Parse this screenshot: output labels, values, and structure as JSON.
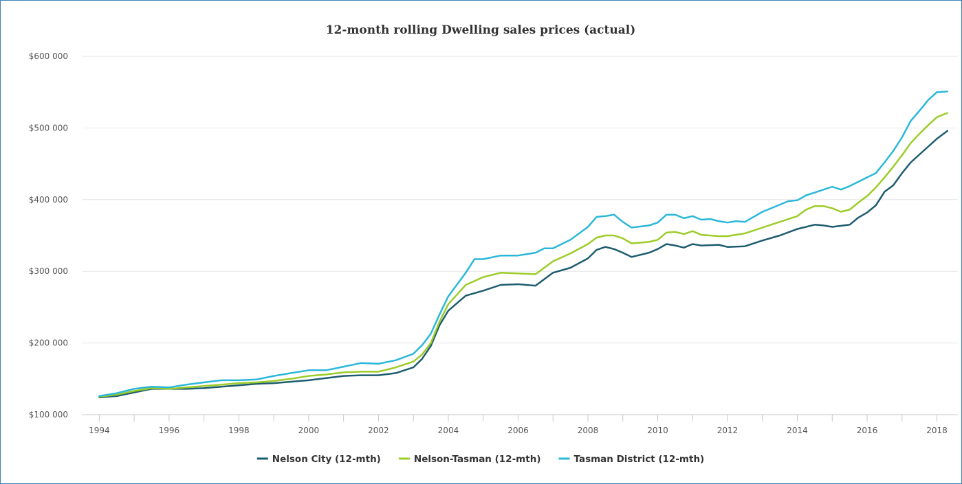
{
  "chart_data": {
    "type": "line",
    "title": "12-month rolling Dwelling sales prices (actual)",
    "xlabel": "",
    "ylabel": "",
    "xlim": [
      1993.5,
      2018.6
    ],
    "ylim": [
      100000,
      600000
    ],
    "y_ticks": [
      {
        "value": 100000,
        "label": "$100 000"
      },
      {
        "value": 200000,
        "label": "$200 000"
      },
      {
        "value": 300000,
        "label": "$300 000"
      },
      {
        "value": 400000,
        "label": "$400 000"
      },
      {
        "value": 500000,
        "label": "$500 000"
      },
      {
        "value": 600000,
        "label": "$600 000"
      }
    ],
    "x_ticks": [
      {
        "value": 1994,
        "label": "1994"
      },
      {
        "value": 1996,
        "label": "1996"
      },
      {
        "value": 1998,
        "label": "1998"
      },
      {
        "value": 2000,
        "label": "2000"
      },
      {
        "value": 2002,
        "label": "2002"
      },
      {
        "value": 2004,
        "label": "2004"
      },
      {
        "value": 2006,
        "label": "2006"
      },
      {
        "value": 2008,
        "label": "2008"
      },
      {
        "value": 2010,
        "label": "2010"
      },
      {
        "value": 2012,
        "label": "2012"
      },
      {
        "value": 2014,
        "label": "2014"
      },
      {
        "value": 2016,
        "label": "2016"
      },
      {
        "value": 2018,
        "label": "2018"
      }
    ],
    "grid": true,
    "legend_position": "bottom-center",
    "series": [
      {
        "name": "Nelson City (12-mth)",
        "color": "#1d5c6e",
        "points": [
          [
            1994.0,
            124000
          ],
          [
            1994.5,
            126000
          ],
          [
            1995.0,
            131000
          ],
          [
            1995.5,
            136000
          ],
          [
            1996.0,
            136000
          ],
          [
            1996.5,
            136000
          ],
          [
            1997.0,
            137000
          ],
          [
            1997.5,
            139000
          ],
          [
            1998.0,
            141000
          ],
          [
            1998.5,
            143000
          ],
          [
            1999.0,
            144000
          ],
          [
            1999.5,
            146000
          ],
          [
            2000.0,
            148000
          ],
          [
            2000.5,
            151000
          ],
          [
            2001.0,
            154000
          ],
          [
            2001.5,
            155000
          ],
          [
            2002.0,
            155000
          ],
          [
            2002.5,
            158000
          ],
          [
            2003.0,
            166000
          ],
          [
            2003.25,
            178000
          ],
          [
            2003.5,
            196000
          ],
          [
            2003.75,
            225000
          ],
          [
            2004.0,
            245000
          ],
          [
            2004.5,
            266000
          ],
          [
            2005.0,
            273000
          ],
          [
            2005.5,
            281000
          ],
          [
            2006.0,
            282000
          ],
          [
            2006.5,
            280000
          ],
          [
            2007.0,
            298000
          ],
          [
            2007.5,
            305000
          ],
          [
            2008.0,
            318000
          ],
          [
            2008.25,
            330000
          ],
          [
            2008.5,
            334000
          ],
          [
            2008.75,
            331000
          ],
          [
            2009.0,
            326000
          ],
          [
            2009.25,
            320000
          ],
          [
            2009.75,
            326000
          ],
          [
            2010.0,
            331000
          ],
          [
            2010.25,
            338000
          ],
          [
            2010.5,
            336000
          ],
          [
            2010.75,
            333000
          ],
          [
            2011.0,
            338000
          ],
          [
            2011.25,
            336000
          ],
          [
            2011.75,
            337000
          ],
          [
            2012.0,
            334000
          ],
          [
            2012.5,
            335000
          ],
          [
            2013.0,
            343000
          ],
          [
            2013.5,
            350000
          ],
          [
            2014.0,
            359000
          ],
          [
            2014.5,
            365000
          ],
          [
            2014.75,
            364000
          ],
          [
            2015.0,
            362000
          ],
          [
            2015.5,
            365000
          ],
          [
            2015.75,
            375000
          ],
          [
            2016.0,
            382000
          ],
          [
            2016.25,
            392000
          ],
          [
            2016.5,
            411000
          ],
          [
            2016.75,
            420000
          ],
          [
            2017.0,
            437000
          ],
          [
            2017.25,
            452000
          ],
          [
            2017.5,
            463000
          ],
          [
            2017.75,
            474000
          ],
          [
            2018.0,
            485000
          ],
          [
            2018.3,
            496000
          ]
        ]
      },
      {
        "name": "Nelson-Tasman (12-mth)",
        "color": "#9ccc28",
        "points": [
          [
            1994.0,
            125000
          ],
          [
            1994.5,
            128000
          ],
          [
            1995.0,
            133000
          ],
          [
            1995.5,
            137000
          ],
          [
            1996.0,
            136000
          ],
          [
            1996.5,
            138000
          ],
          [
            1997.0,
            140000
          ],
          [
            1997.5,
            142000
          ],
          [
            1998.0,
            144000
          ],
          [
            1998.5,
            145000
          ],
          [
            1999.0,
            147000
          ],
          [
            1999.5,
            150000
          ],
          [
            2000.0,
            154000
          ],
          [
            2000.5,
            156000
          ],
          [
            2001.0,
            159000
          ],
          [
            2001.5,
            160000
          ],
          [
            2002.0,
            160000
          ],
          [
            2002.5,
            166000
          ],
          [
            2003.0,
            174000
          ],
          [
            2003.25,
            184000
          ],
          [
            2003.5,
            200000
          ],
          [
            2003.75,
            230000
          ],
          [
            2004.0,
            254000
          ],
          [
            2004.5,
            281000
          ],
          [
            2005.0,
            292000
          ],
          [
            2005.5,
            298000
          ],
          [
            2006.0,
            297000
          ],
          [
            2006.5,
            296000
          ],
          [
            2007.0,
            314000
          ],
          [
            2007.5,
            325000
          ],
          [
            2008.0,
            338000
          ],
          [
            2008.25,
            347000
          ],
          [
            2008.5,
            350000
          ],
          [
            2008.75,
            350000
          ],
          [
            2009.0,
            346000
          ],
          [
            2009.25,
            339000
          ],
          [
            2009.75,
            341000
          ],
          [
            2010.0,
            344000
          ],
          [
            2010.25,
            354000
          ],
          [
            2010.5,
            355000
          ],
          [
            2010.75,
            352000
          ],
          [
            2011.0,
            356000
          ],
          [
            2011.25,
            351000
          ],
          [
            2011.75,
            349000
          ],
          [
            2012.0,
            349000
          ],
          [
            2012.5,
            353000
          ],
          [
            2013.0,
            361000
          ],
          [
            2013.5,
            369000
          ],
          [
            2014.0,
            377000
          ],
          [
            2014.25,
            386000
          ],
          [
            2014.5,
            391000
          ],
          [
            2014.75,
            391000
          ],
          [
            2015.0,
            388000
          ],
          [
            2015.25,
            383000
          ],
          [
            2015.5,
            386000
          ],
          [
            2015.75,
            396000
          ],
          [
            2016.0,
            405000
          ],
          [
            2016.25,
            417000
          ],
          [
            2016.5,
            431000
          ],
          [
            2016.75,
            446000
          ],
          [
            2017.0,
            462000
          ],
          [
            2017.25,
            479000
          ],
          [
            2017.5,
            492000
          ],
          [
            2017.75,
            504000
          ],
          [
            2018.0,
            515000
          ],
          [
            2018.3,
            521000
          ]
        ]
      },
      {
        "name": "Tasman District (12-mth)",
        "color": "#2bb7d9",
        "points": [
          [
            1994.0,
            126000
          ],
          [
            1994.5,
            130000
          ],
          [
            1995.0,
            136000
          ],
          [
            1995.5,
            139000
          ],
          [
            1996.0,
            138000
          ],
          [
            1996.5,
            142000
          ],
          [
            1997.0,
            145000
          ],
          [
            1997.5,
            148000
          ],
          [
            1998.0,
            148000
          ],
          [
            1998.5,
            149000
          ],
          [
            1999.0,
            154000
          ],
          [
            1999.5,
            158000
          ],
          [
            2000.0,
            162000
          ],
          [
            2000.5,
            162000
          ],
          [
            2001.0,
            167000
          ],
          [
            2001.5,
            172000
          ],
          [
            2002.0,
            171000
          ],
          [
            2002.5,
            176000
          ],
          [
            2003.0,
            185000
          ],
          [
            2003.25,
            197000
          ],
          [
            2003.5,
            213000
          ],
          [
            2003.75,
            240000
          ],
          [
            2004.0,
            265000
          ],
          [
            2004.5,
            298000
          ],
          [
            2004.75,
            317000
          ],
          [
            2005.0,
            317000
          ],
          [
            2005.5,
            322000
          ],
          [
            2006.0,
            322000
          ],
          [
            2006.5,
            326000
          ],
          [
            2006.75,
            332000
          ],
          [
            2007.0,
            332000
          ],
          [
            2007.5,
            344000
          ],
          [
            2008.0,
            362000
          ],
          [
            2008.25,
            376000
          ],
          [
            2008.5,
            377000
          ],
          [
            2008.75,
            379000
          ],
          [
            2009.0,
            369000
          ],
          [
            2009.25,
            361000
          ],
          [
            2009.75,
            364000
          ],
          [
            2010.0,
            368000
          ],
          [
            2010.25,
            379000
          ],
          [
            2010.5,
            379000
          ],
          [
            2010.75,
            374000
          ],
          [
            2011.0,
            377000
          ],
          [
            2011.25,
            372000
          ],
          [
            2011.5,
            373000
          ],
          [
            2011.75,
            370000
          ],
          [
            2012.0,
            368000
          ],
          [
            2012.25,
            370000
          ],
          [
            2012.5,
            369000
          ],
          [
            2013.0,
            383000
          ],
          [
            2013.5,
            393000
          ],
          [
            2013.75,
            398000
          ],
          [
            2014.0,
            399000
          ],
          [
            2014.25,
            406000
          ],
          [
            2014.5,
            410000
          ],
          [
            2015.0,
            418000
          ],
          [
            2015.25,
            414000
          ],
          [
            2015.5,
            419000
          ],
          [
            2015.75,
            425000
          ],
          [
            2016.0,
            431000
          ],
          [
            2016.25,
            437000
          ],
          [
            2016.5,
            452000
          ],
          [
            2016.75,
            468000
          ],
          [
            2017.0,
            487000
          ],
          [
            2017.25,
            510000
          ],
          [
            2017.5,
            524000
          ],
          [
            2017.75,
            539000
          ],
          [
            2018.0,
            550000
          ],
          [
            2018.3,
            551000
          ]
        ]
      }
    ]
  }
}
